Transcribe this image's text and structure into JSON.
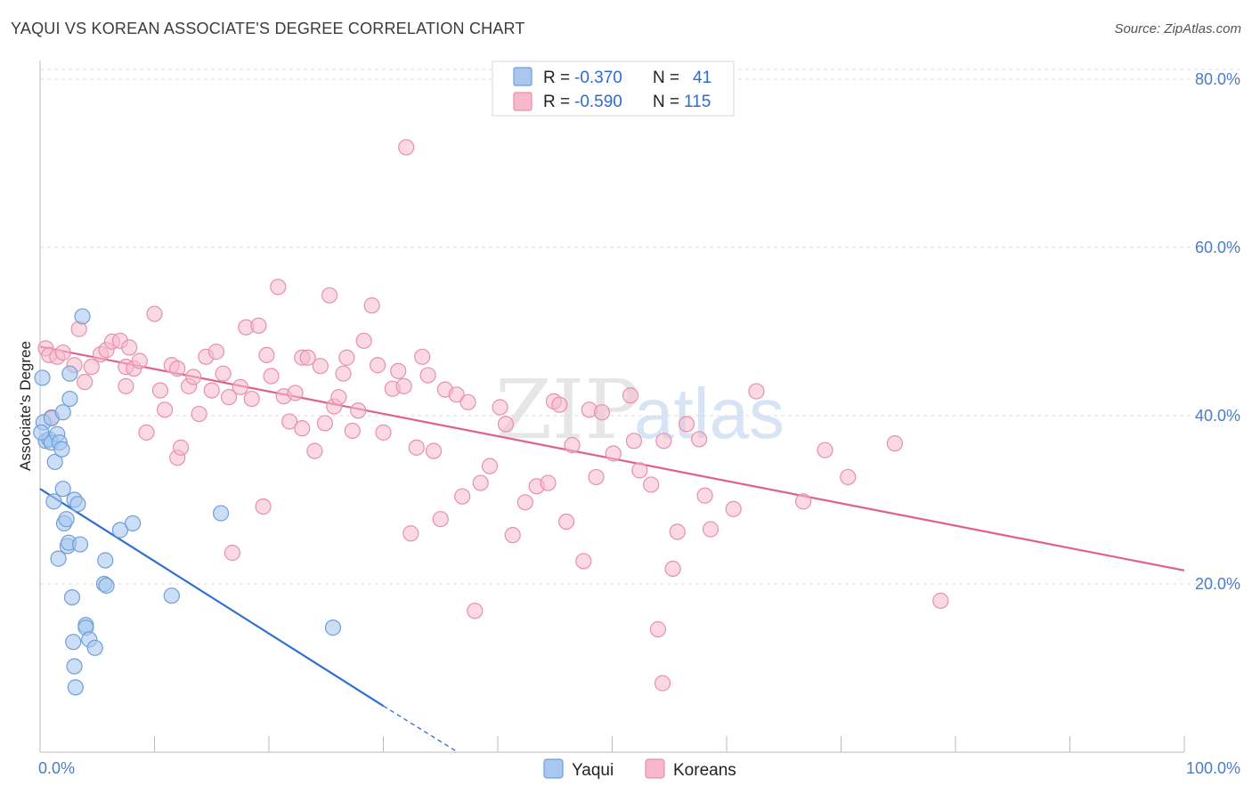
{
  "header": {
    "title": "YAQUI VS KOREAN ASSOCIATE'S DEGREE CORRELATION CHART",
    "source": "Source: ZipAtlas.com"
  },
  "watermark": {
    "part1": "ZIP",
    "part2": "atlas"
  },
  "colors": {
    "yaqui_fill": "#a9c8f0",
    "yaqui_stroke": "#6f9fd8",
    "yaqui_line": "#2f6fd0",
    "korean_fill": "#f6b9cc",
    "korean_stroke": "#e890ab",
    "korean_line": "#e0608a",
    "tick_label": "#4a7cc9",
    "grid": "#dddddd"
  },
  "legend": {
    "yaqui": {
      "r_label": "R =",
      "r_value": "-0.370",
      "n_label": "N =",
      "n_value": "41"
    },
    "koreans": {
      "r_label": "R =",
      "r_value": "-0.590",
      "n_label": "N =",
      "n_value": "115"
    }
  },
  "chart_data": {
    "type": "scatter",
    "title": "YAQUI VS KOREAN ASSOCIATE'S DEGREE CORRELATION CHART",
    "xlabel": "",
    "ylabel": "Associate's Degree",
    "xlim": [
      0,
      100
    ],
    "ylim": [
      0,
      82
    ],
    "x_tick_labels": [
      "0.0%",
      "100.0%"
    ],
    "y_ticks": [
      20,
      40,
      60,
      80
    ],
    "y_tick_labels": [
      "20.0%",
      "40.0%",
      "60.0%",
      "80.0%"
    ],
    "legend_position": "bottom",
    "legend_labels": [
      "Yaqui",
      "Koreans"
    ],
    "series": [
      {
        "name": "Yaqui",
        "points": [
          [
            0.2,
            44.5
          ],
          [
            0.3,
            39.2
          ],
          [
            0.5,
            37.0
          ],
          [
            0.8,
            37.2
          ],
          [
            1.0,
            36.8
          ],
          [
            1.0,
            39.7
          ],
          [
            1.2,
            29.8
          ],
          [
            1.3,
            34.5
          ],
          [
            1.5,
            37.8
          ],
          [
            1.7,
            36.8
          ],
          [
            1.6,
            23.0
          ],
          [
            1.9,
            36.0
          ],
          [
            2.0,
            40.4
          ],
          [
            2.0,
            31.3
          ],
          [
            2.1,
            27.2
          ],
          [
            2.3,
            27.7
          ],
          [
            2.4,
            24.5
          ],
          [
            2.5,
            24.9
          ],
          [
            2.6,
            42.0
          ],
          [
            2.6,
            45.0
          ],
          [
            2.8,
            18.4
          ],
          [
            2.9,
            13.1
          ],
          [
            3.0,
            10.2
          ],
          [
            3.0,
            30.0
          ],
          [
            3.1,
            7.7
          ],
          [
            3.3,
            29.5
          ],
          [
            3.5,
            24.7
          ],
          [
            3.7,
            51.8
          ],
          [
            4.0,
            15.1
          ],
          [
            4.0,
            14.8
          ],
          [
            4.3,
            13.4
          ],
          [
            4.8,
            12.4
          ],
          [
            5.6,
            20.0
          ],
          [
            5.7,
            22.8
          ],
          [
            5.8,
            19.8
          ],
          [
            7.0,
            26.4
          ],
          [
            8.1,
            27.2
          ],
          [
            11.5,
            18.6
          ],
          [
            15.8,
            28.4
          ],
          [
            25.6,
            14.8
          ],
          [
            0.1,
            38.0
          ]
        ],
        "trend": {
          "x0": 0,
          "y0": 31.3,
          "x1": 30,
          "y1": 5.5,
          "dash_to_x": 36.5,
          "dash_to_y": 0
        }
      },
      {
        "name": "Koreans",
        "points": [
          [
            0.5,
            48.0
          ],
          [
            0.8,
            47.2
          ],
          [
            1.0,
            39.8
          ],
          [
            1.5,
            47.0
          ],
          [
            2.0,
            47.5
          ],
          [
            3.0,
            46.0
          ],
          [
            3.4,
            50.3
          ],
          [
            3.9,
            44.0
          ],
          [
            4.5,
            45.8
          ],
          [
            5.3,
            47.3
          ],
          [
            5.8,
            47.8
          ],
          [
            6.3,
            48.8
          ],
          [
            7.0,
            48.9
          ],
          [
            7.5,
            45.8
          ],
          [
            7.8,
            48.1
          ],
          [
            8.2,
            45.6
          ],
          [
            8.7,
            46.5
          ],
          [
            9.3,
            38.0
          ],
          [
            10.0,
            52.1
          ],
          [
            10.5,
            43.0
          ],
          [
            10.9,
            40.7
          ],
          [
            11.5,
            46.0
          ],
          [
            12.0,
            35.0
          ],
          [
            12.3,
            36.2
          ],
          [
            13.0,
            43.5
          ],
          [
            13.4,
            44.6
          ],
          [
            13.9,
            40.2
          ],
          [
            14.5,
            47.0
          ],
          [
            15.0,
            43.0
          ],
          [
            15.4,
            47.6
          ],
          [
            16.0,
            45.0
          ],
          [
            16.5,
            42.2
          ],
          [
            16.8,
            23.7
          ],
          [
            17.5,
            43.4
          ],
          [
            18.0,
            50.5
          ],
          [
            18.5,
            42.0
          ],
          [
            19.1,
            50.7
          ],
          [
            19.5,
            29.2
          ],
          [
            19.8,
            47.2
          ],
          [
            20.2,
            44.7
          ],
          [
            20.8,
            55.3
          ],
          [
            21.3,
            42.3
          ],
          [
            21.8,
            39.3
          ],
          [
            22.3,
            42.7
          ],
          [
            22.9,
            46.9
          ],
          [
            23.4,
            46.9
          ],
          [
            24.0,
            35.8
          ],
          [
            24.5,
            45.9
          ],
          [
            24.9,
            39.1
          ],
          [
            25.3,
            54.3
          ],
          [
            25.7,
            41.1
          ],
          [
            26.1,
            42.2
          ],
          [
            26.8,
            46.9
          ],
          [
            27.3,
            38.2
          ],
          [
            27.8,
            40.6
          ],
          [
            28.3,
            48.9
          ],
          [
            29.0,
            53.1
          ],
          [
            29.5,
            46.0
          ],
          [
            30.0,
            38.0
          ],
          [
            30.8,
            43.2
          ],
          [
            31.3,
            45.3
          ],
          [
            31.8,
            43.5
          ],
          [
            32.4,
            26.0
          ],
          [
            32.9,
            36.2
          ],
          [
            33.4,
            47.0
          ],
          [
            33.9,
            44.8
          ],
          [
            34.4,
            35.8
          ],
          [
            35.0,
            27.7
          ],
          [
            35.4,
            43.1
          ],
          [
            36.4,
            42.5
          ],
          [
            36.9,
            30.4
          ],
          [
            37.4,
            41.6
          ],
          [
            38.0,
            16.8
          ],
          [
            38.5,
            32.0
          ],
          [
            39.3,
            34.0
          ],
          [
            40.2,
            41.0
          ],
          [
            40.7,
            39.0
          ],
          [
            41.3,
            25.8
          ],
          [
            42.4,
            29.7
          ],
          [
            43.4,
            31.6
          ],
          [
            44.4,
            32.0
          ],
          [
            44.9,
            41.7
          ],
          [
            45.4,
            41.3
          ],
          [
            46.0,
            27.4
          ],
          [
            46.5,
            36.5
          ],
          [
            47.5,
            22.7
          ],
          [
            48.0,
            40.7
          ],
          [
            48.6,
            32.7
          ],
          [
            49.1,
            40.4
          ],
          [
            50.1,
            35.5
          ],
          [
            51.6,
            42.4
          ],
          [
            51.9,
            37.0
          ],
          [
            52.4,
            33.5
          ],
          [
            53.4,
            31.8
          ],
          [
            54.0,
            14.6
          ],
          [
            54.5,
            37.0
          ],
          [
            55.3,
            21.8
          ],
          [
            55.7,
            26.2
          ],
          [
            56.5,
            39.0
          ],
          [
            57.6,
            37.2
          ],
          [
            58.1,
            30.5
          ],
          [
            58.6,
            26.5
          ],
          [
            60.6,
            28.9
          ],
          [
            62.6,
            42.9
          ],
          [
            66.7,
            29.8
          ],
          [
            68.6,
            35.9
          ],
          [
            70.6,
            32.7
          ],
          [
            74.7,
            36.7
          ],
          [
            78.7,
            18.0
          ],
          [
            54.4,
            8.2
          ],
          [
            32.0,
            71.9
          ],
          [
            22.9,
            38.5
          ],
          [
            12.0,
            45.6
          ],
          [
            7.5,
            43.5
          ],
          [
            26.5,
            45.0
          ]
        ],
        "trend": {
          "x0": 0,
          "y0": 48.2,
          "x1": 100,
          "y1": 21.6
        }
      }
    ]
  }
}
